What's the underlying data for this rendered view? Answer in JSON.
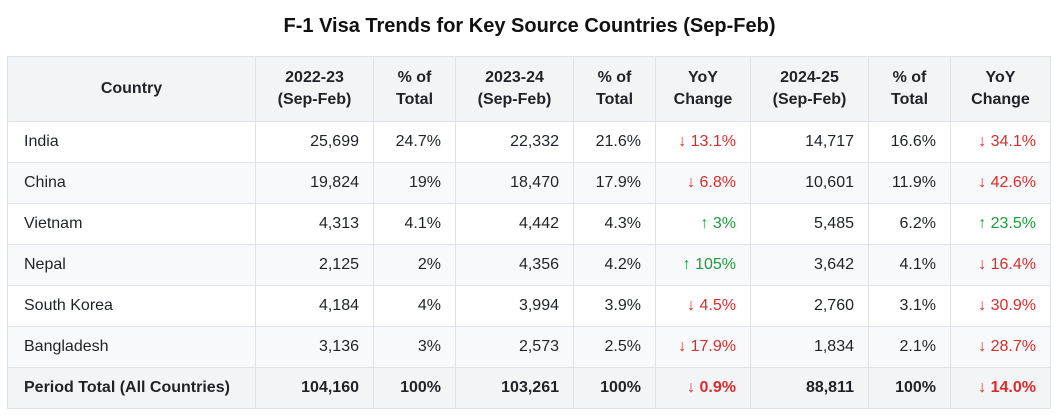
{
  "title": "F-1 Visa Trends for Key Source Countries (Sep-Feb)",
  "colors": {
    "down": "#d92d2d",
    "up": "#1e9a3c",
    "header_bg": "#f3f4f6"
  },
  "chart_data": {
    "type": "table",
    "title": "F-1 Visa Trends for Key Source Countries (Sep-Feb)",
    "columns": [
      "Country",
      "2022-23 (Sep-Feb)",
      "% of Total",
      "2023-24 (Sep-Feb)",
      "% of Total",
      "YoY Change",
      "2024-25 (Sep-Feb)",
      "% of Total",
      "YoY Change"
    ],
    "header_lines": [
      [
        "Country"
      ],
      [
        "2022-23",
        "(Sep-Feb)"
      ],
      [
        "% of",
        "Total"
      ],
      [
        "2023-24",
        "(Sep-Feb)"
      ],
      [
        "% of",
        "Total"
      ],
      [
        "YoY",
        "Change"
      ],
      [
        "2024-25",
        "(Sep-Feb)"
      ],
      [
        "% of",
        "Total"
      ],
      [
        "YoY",
        "Change"
      ]
    ],
    "rows": [
      {
        "country": "India",
        "v2223": "25,699",
        "p2223": "24.7%",
        "v2324": "22,332",
        "p2324": "21.6%",
        "yoy2324": "↓ 13.1%",
        "yoy2324_dir": "down",
        "v2425": "14,717",
        "p2425": "16.6%",
        "yoy2425": "↓ 34.1%",
        "yoy2425_dir": "down"
      },
      {
        "country": "China",
        "v2223": "19,824",
        "p2223": "19%",
        "v2324": "18,470",
        "p2324": "17.9%",
        "yoy2324": "↓ 6.8%",
        "yoy2324_dir": "down",
        "v2425": "10,601",
        "p2425": "11.9%",
        "yoy2425": "↓ 42.6%",
        "yoy2425_dir": "down"
      },
      {
        "country": "Vietnam",
        "v2223": "4,313",
        "p2223": "4.1%",
        "v2324": "4,442",
        "p2324": "4.3%",
        "yoy2324": "↑ 3%",
        "yoy2324_dir": "up",
        "v2425": "5,485",
        "p2425": "6.2%",
        "yoy2425": "↑ 23.5%",
        "yoy2425_dir": "up"
      },
      {
        "country": "Nepal",
        "v2223": "2,125",
        "p2223": "2%",
        "v2324": "4,356",
        "p2324": "4.2%",
        "yoy2324": "↑ 105%",
        "yoy2324_dir": "up",
        "v2425": "3,642",
        "p2425": "4.1%",
        "yoy2425": "↓ 16.4%",
        "yoy2425_dir": "down"
      },
      {
        "country": "South Korea",
        "v2223": "4,184",
        "p2223": "4%",
        "v2324": "3,994",
        "p2324": "3.9%",
        "yoy2324": "↓ 4.5%",
        "yoy2324_dir": "down",
        "v2425": "2,760",
        "p2425": "3.1%",
        "yoy2425": "↓ 30.9%",
        "yoy2425_dir": "down"
      },
      {
        "country": "Bangladesh",
        "v2223": "3,136",
        "p2223": "3%",
        "v2324": "2,573",
        "p2324": "2.5%",
        "yoy2324": "↓ 17.9%",
        "yoy2324_dir": "down",
        "v2425": "1,834",
        "p2425": "2.1%",
        "yoy2425": "↓ 28.7%",
        "yoy2425_dir": "down"
      }
    ],
    "total": {
      "country": "Period Total (All Countries)",
      "v2223": "104,160",
      "p2223": "100%",
      "v2324": "103,261",
      "p2324": "100%",
      "yoy2324": "↓ 0.9%",
      "yoy2324_dir": "down",
      "v2425": "88,811",
      "p2425": "100%",
      "yoy2425": "↓ 14.0%",
      "yoy2425_dir": "down"
    }
  }
}
